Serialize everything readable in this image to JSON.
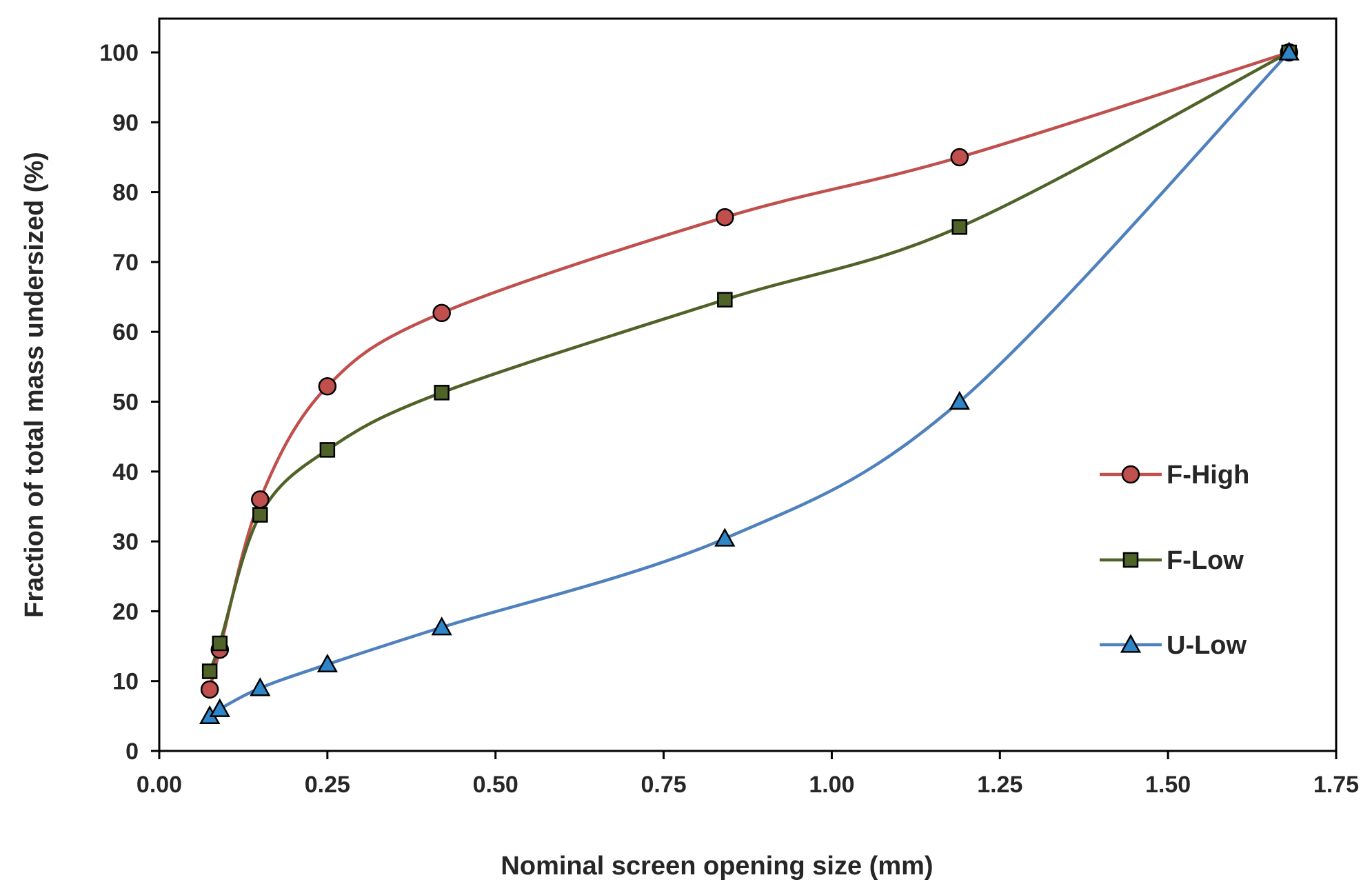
{
  "chart_data": {
    "type": "line",
    "title": "",
    "xlabel": "Nominal screen opening size  (mm)",
    "ylabel": "Fraction  of  total  mass  undersized   (%)",
    "xlim": [
      0.0,
      1.75
    ],
    "ylim": [
      0,
      100
    ],
    "x_ticks": [
      "0.00",
      "0.25",
      "0.50",
      "0.75",
      "1.00",
      "1.25",
      "1.50",
      "1.75"
    ],
    "y_ticks": [
      "0",
      "10",
      "20",
      "30",
      "40",
      "50",
      "60",
      "70",
      "80",
      "90",
      "100"
    ],
    "grid": false,
    "legend_position": "right-middle",
    "series": [
      {
        "name": "F-High",
        "marker": "circle",
        "color": "#c0504d",
        "marker_fill": "#c0504d",
        "x": [
          0.075,
          0.09,
          0.15,
          0.25,
          0.42,
          0.841,
          1.19,
          1.68
        ],
        "y": [
          8.8,
          14.5,
          36.0,
          52.2,
          62.7,
          76.4,
          85.0,
          100.0
        ]
      },
      {
        "name": "F-Low",
        "marker": "square",
        "color": "#4f6228",
        "marker_fill": "#4f6228",
        "x": [
          0.075,
          0.09,
          0.15,
          0.25,
          0.42,
          0.841,
          1.19,
          1.68
        ],
        "y": [
          11.4,
          15.4,
          33.8,
          43.1,
          51.3,
          64.6,
          75.0,
          100.0
        ]
      },
      {
        "name": "U-Low",
        "marker": "triangle",
        "color": "#4f81bd",
        "marker_fill": "#2e86c8",
        "x": [
          0.075,
          0.09,
          0.15,
          0.25,
          0.42,
          0.841,
          1.19,
          1.68
        ],
        "y": [
          5.0,
          6.0,
          9.0,
          12.4,
          17.7,
          30.4,
          50.0,
          100.0
        ]
      }
    ]
  }
}
